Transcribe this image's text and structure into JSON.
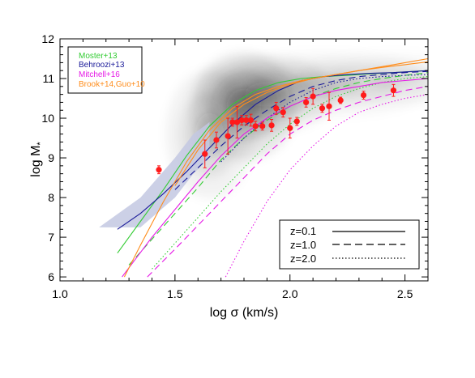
{
  "chart_data": {
    "type": "scatter",
    "xlabel": "log σ (km/s)",
    "ylabel_main": "log M",
    "ylabel_sub": "*",
    "xlim": [
      1.0,
      2.6
    ],
    "ylim": [
      5.9,
      12.0
    ],
    "x_ticks": [
      "1.0",
      "1.5",
      "2.0",
      "2.5"
    ],
    "y_ticks": [
      "6",
      "7",
      "8",
      "9",
      "10",
      "11",
      "12"
    ],
    "legend_models": [
      {
        "name": "Moster+13",
        "color": "#33cc33"
      },
      {
        "name": "Behroozi+13",
        "color": "#1a1a99"
      },
      {
        "name": "Mitchell+16",
        "color": "#e619e6"
      },
      {
        "name": "Brook+14,Guo+10",
        "color": "#ff8c1a"
      }
    ],
    "legend_redshift": [
      {
        "label": "z=0.1",
        "style": "solid"
      },
      {
        "label": "z=1.0",
        "style": "dashed"
      },
      {
        "label": "z=2.0",
        "style": "dotted"
      }
    ],
    "observations": {
      "color": "#ff1a1a",
      "points": [
        {
          "x": 1.43,
          "y": 8.7,
          "err": 0.1
        },
        {
          "x": 1.63,
          "y": 9.1,
          "err": 0.35
        },
        {
          "x": 1.68,
          "y": 9.45,
          "err": 0.2
        },
        {
          "x": 1.73,
          "y": 9.55,
          "err": 0.45
        },
        {
          "x": 1.75,
          "y": 9.9,
          "err": 0.1
        },
        {
          "x": 1.77,
          "y": 9.9,
          "err": 0.4
        },
        {
          "x": 1.79,
          "y": 9.95,
          "err": 0.12
        },
        {
          "x": 1.81,
          "y": 9.95,
          "err": 0.12
        },
        {
          "x": 1.83,
          "y": 9.95,
          "err": 0.15
        },
        {
          "x": 1.85,
          "y": 9.8,
          "err": 0.12
        },
        {
          "x": 1.88,
          "y": 9.8,
          "err": 0.1
        },
        {
          "x": 1.92,
          "y": 9.82,
          "err": 0.15
        },
        {
          "x": 1.94,
          "y": 10.25,
          "err": 0.15
        },
        {
          "x": 1.97,
          "y": 10.15,
          "err": 0.12
        },
        {
          "x": 2.0,
          "y": 9.75,
          "err": 0.25
        },
        {
          "x": 2.03,
          "y": 9.92,
          "err": 0.1
        },
        {
          "x": 2.07,
          "y": 10.4,
          "err": 0.12
        },
        {
          "x": 2.1,
          "y": 10.55,
          "err": 0.2
        },
        {
          "x": 2.14,
          "y": 10.25,
          "err": 0.1
        },
        {
          "x": 2.17,
          "y": 10.3,
          "err": 0.35
        },
        {
          "x": 2.22,
          "y": 10.45,
          "err": 0.08
        },
        {
          "x": 2.32,
          "y": 10.58,
          "err": 0.1
        },
        {
          "x": 2.45,
          "y": 10.7,
          "err": 0.15
        }
      ]
    },
    "model_curves": [
      {
        "name": "Moster+13",
        "z": "0.1",
        "style": "solid",
        "x": [
          1.25,
          1.35,
          1.45,
          1.55,
          1.65,
          1.75,
          1.85,
          1.95,
          2.05,
          2.15,
          2.25,
          2.35,
          2.45,
          2.6
        ],
        "y": [
          6.6,
          7.4,
          8.2,
          9.05,
          9.8,
          10.35,
          10.7,
          10.9,
          11.0,
          11.05,
          11.08,
          11.12,
          11.15,
          11.2
        ]
      },
      {
        "name": "Moster+13",
        "z": "1.0",
        "style": "dashed",
        "x": [
          1.3,
          1.4,
          1.5,
          1.6,
          1.7,
          1.8,
          1.9,
          2.0,
          2.1,
          2.2,
          2.3,
          2.4,
          2.5,
          2.6
        ],
        "y": [
          6.3,
          6.95,
          7.6,
          8.25,
          8.95,
          9.5,
          9.95,
          10.3,
          10.55,
          10.75,
          10.9,
          11.0,
          11.08,
          11.15
        ]
      },
      {
        "name": "Moster+13",
        "z": "2.0",
        "style": "dotted",
        "x": [
          1.4,
          1.5,
          1.6,
          1.7,
          1.8,
          1.9,
          2.0,
          2.1,
          2.2,
          2.3,
          2.4,
          2.5,
          2.6
        ],
        "y": [
          6.2,
          6.85,
          7.5,
          8.15,
          8.75,
          9.35,
          9.85,
          10.25,
          10.55,
          10.75,
          10.9,
          11.0,
          11.05
        ]
      },
      {
        "name": "Behroozi+13",
        "z": "0.1",
        "style": "solid",
        "x": [
          1.25,
          1.35,
          1.45,
          1.55,
          1.65,
          1.75,
          1.85,
          1.95,
          2.05,
          2.15,
          2.25,
          2.35,
          2.45,
          2.6
        ],
        "y": [
          7.2,
          7.6,
          8.1,
          8.65,
          9.25,
          9.85,
          10.35,
          10.7,
          10.95,
          11.05,
          11.1,
          11.13,
          11.15,
          11.2
        ]
      },
      {
        "name": "Behroozi+13",
        "z": "1.0",
        "style": "dashed",
        "x": [
          1.5,
          1.6,
          1.7,
          1.8,
          1.9,
          2.0,
          2.1,
          2.2,
          2.3,
          2.4,
          2.5,
          2.6
        ],
        "y": [
          8.2,
          8.75,
          9.3,
          9.8,
          10.2,
          10.55,
          10.8,
          10.95,
          11.05,
          11.1,
          11.15,
          11.18
        ]
      },
      {
        "name": "Behroozi+13",
        "z": "2.0",
        "style": "dotted",
        "x": [
          1.7,
          1.8,
          1.9,
          2.0,
          2.1,
          2.2,
          2.3,
          2.4,
          2.5,
          2.6
        ],
        "y": [
          8.9,
          9.5,
          10.0,
          10.4,
          10.7,
          10.9,
          11.0,
          11.05,
          11.08,
          11.1
        ]
      },
      {
        "name": "Mitchell+16",
        "z": "0.1",
        "style": "solid",
        "x": [
          1.27,
          1.4,
          1.5,
          1.6,
          1.7,
          1.8,
          1.9,
          2.0,
          2.1,
          2.2,
          2.3,
          2.4,
          2.5,
          2.6
        ],
        "y": [
          6.0,
          7.0,
          7.7,
          8.4,
          9.05,
          9.6,
          10.0,
          10.3,
          10.55,
          10.7,
          10.8,
          10.9,
          10.95,
          11.0
        ]
      },
      {
        "name": "Mitchell+16",
        "z": "1.0",
        "style": "dashed",
        "x": [
          1.38,
          1.5,
          1.6,
          1.7,
          1.8,
          1.9,
          2.0,
          2.1,
          2.2,
          2.3,
          2.4,
          2.5,
          2.6
        ],
        "y": [
          6.0,
          6.7,
          7.3,
          7.9,
          8.5,
          9.1,
          9.6,
          9.95,
          10.2,
          10.4,
          10.55,
          10.7,
          10.8
        ]
      },
      {
        "name": "Mitchell+16",
        "z": "2.0",
        "style": "dotted",
        "x": [
          1.72,
          1.8,
          1.9,
          2.0,
          2.1,
          2.2,
          2.3,
          2.4,
          2.5,
          2.6
        ],
        "y": [
          6.0,
          6.9,
          7.9,
          8.7,
          9.3,
          9.8,
          10.15,
          10.35,
          10.5,
          10.6
        ]
      },
      {
        "name": "Brook+14,Guo+10",
        "z": "0.1",
        "style": "solid",
        "x": [
          1.28,
          1.35,
          1.45,
          1.55,
          1.65,
          1.75,
          1.85,
          1.95,
          2.05,
          2.15,
          2.25,
          2.35,
          2.45,
          2.6
        ],
        "y": [
          6.0,
          6.8,
          7.9,
          8.9,
          9.7,
          10.25,
          10.6,
          10.8,
          10.95,
          11.05,
          11.15,
          11.25,
          11.35,
          11.5
        ]
      },
      {
        "name": "Brook+14,Guo+10",
        "z": "0.1",
        "style": "solid",
        "x": [
          1.5,
          1.6,
          1.7,
          1.8,
          1.9,
          2.0,
          2.1,
          2.2,
          2.3,
          2.4,
          2.5,
          2.6
        ],
        "y": [
          8.3,
          9.2,
          9.9,
          10.35,
          10.65,
          10.85,
          11.0,
          11.1,
          11.2,
          11.28,
          11.35,
          11.42
        ]
      }
    ],
    "shaded_band": {
      "color": "#c3c8e2",
      "x": [
        1.17,
        1.35,
        1.5,
        1.58,
        1.65
      ],
      "lower": [
        7.25,
        7.25,
        8.0,
        8.6,
        9.0
      ],
      "upper": [
        7.25,
        8.0,
        9.0,
        9.6,
        9.9
      ]
    },
    "density_cloud": {
      "color": "#1e1e1e",
      "blobs": [
        {
          "x": 1.8,
          "y": 10.3,
          "sx": 0.085,
          "sy": 0.5,
          "w": 1.0
        },
        {
          "x": 1.9,
          "y": 10.6,
          "sx": 0.11,
          "sy": 0.35,
          "w": 0.75
        },
        {
          "x": 1.65,
          "y": 9.6,
          "sx": 0.07,
          "sy": 0.6,
          "w": 0.55
        },
        {
          "x": 2.15,
          "y": 10.85,
          "sx": 0.18,
          "sy": 0.3,
          "w": 0.4
        },
        {
          "x": 2.45,
          "y": 11.0,
          "sx": 0.15,
          "sy": 0.25,
          "w": 0.22
        }
      ]
    }
  }
}
